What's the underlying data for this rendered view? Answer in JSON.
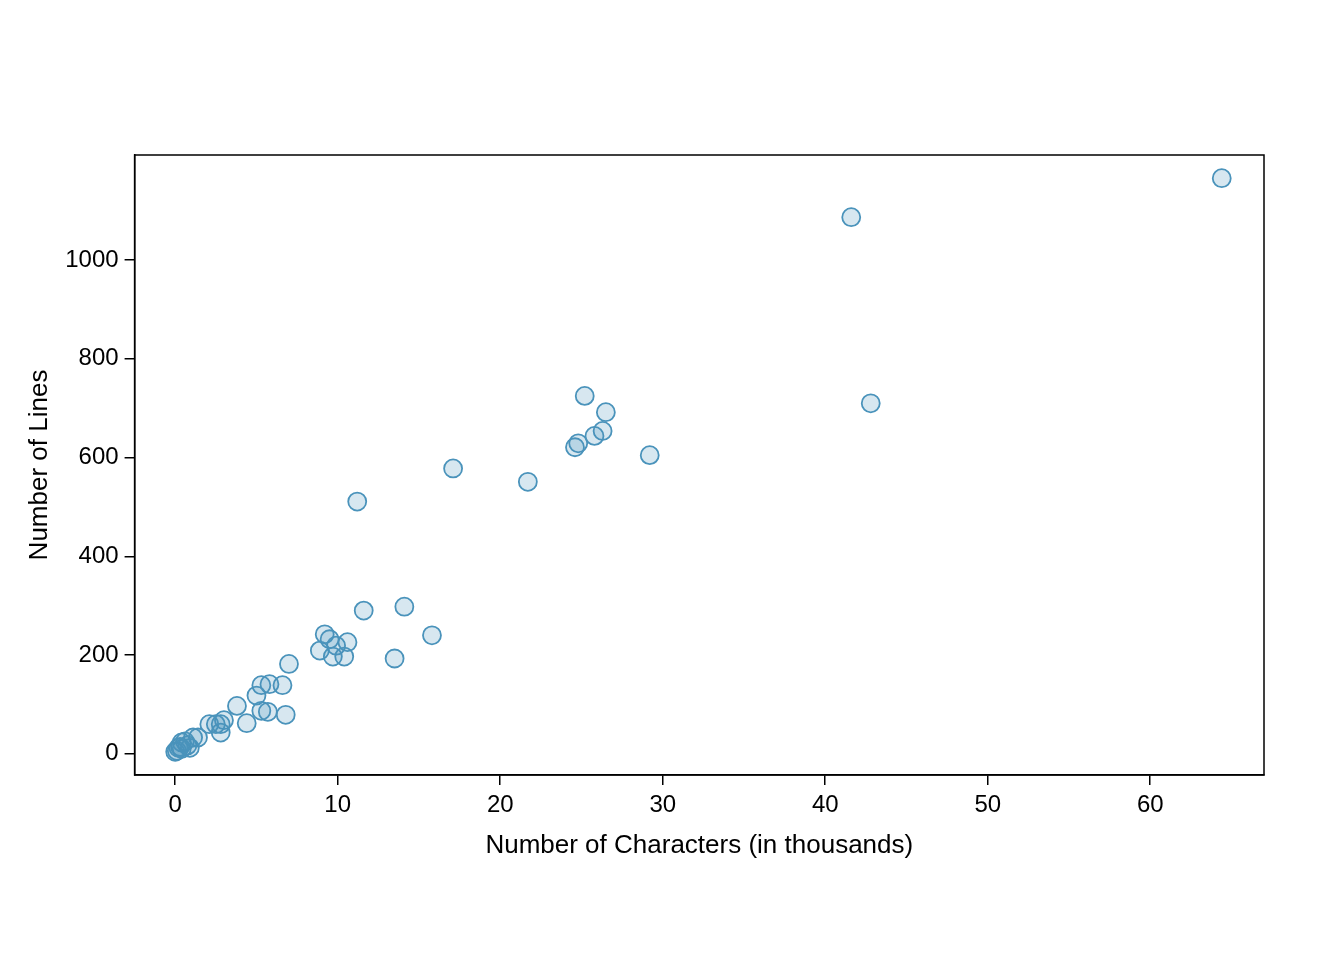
{
  "chart_data": {
    "type": "scatter",
    "x_label": "Number of Characters (in thousands)",
    "y_label": "Number of Lines",
    "x": [
      64.4,
      41.6,
      42.8,
      25.2,
      26.5,
      26.3,
      25.8,
      24.8,
      24.6,
      29.2,
      17.1,
      21.7,
      11.2,
      11.6,
      14.1,
      15.8,
      13.5,
      9.2,
      9.5,
      9.9,
      10.6,
      8.9,
      9.7,
      10.4,
      7.0,
      6.6,
      5.8,
      5.3,
      5.0,
      5.3,
      5.7,
      6.8,
      3.8,
      4.4,
      3.0,
      2.8,
      2.8,
      2.5,
      2.1,
      1.4,
      1.1,
      0.75,
      0.6,
      0.4,
      0.3,
      0.1,
      0.0,
      0.9,
      0.4,
      0.2
    ],
    "values": [
      1166,
      1087,
      710,
      725,
      692,
      654,
      644,
      629,
      621,
      605,
      578,
      551,
      511,
      290,
      298,
      240,
      193,
      242,
      232,
      219,
      226,
      209,
      197,
      197,
      182,
      139,
      141,
      139,
      118,
      87,
      85,
      79,
      97,
      62,
      68,
      60,
      43,
      60,
      60,
      33,
      33,
      17,
      25,
      23,
      14,
      6,
      4,
      12,
      10,
      12
    ],
    "xlim": [
      -2.5,
      67
    ],
    "xticks": [
      0,
      10,
      20,
      30,
      40,
      50,
      60
    ],
    "ylim": [
      -43,
      1213
    ],
    "yticks": [
      0,
      200,
      400,
      600,
      800,
      1000
    ],
    "color": "#4a93bb",
    "marker": "circle",
    "grid": false
  }
}
